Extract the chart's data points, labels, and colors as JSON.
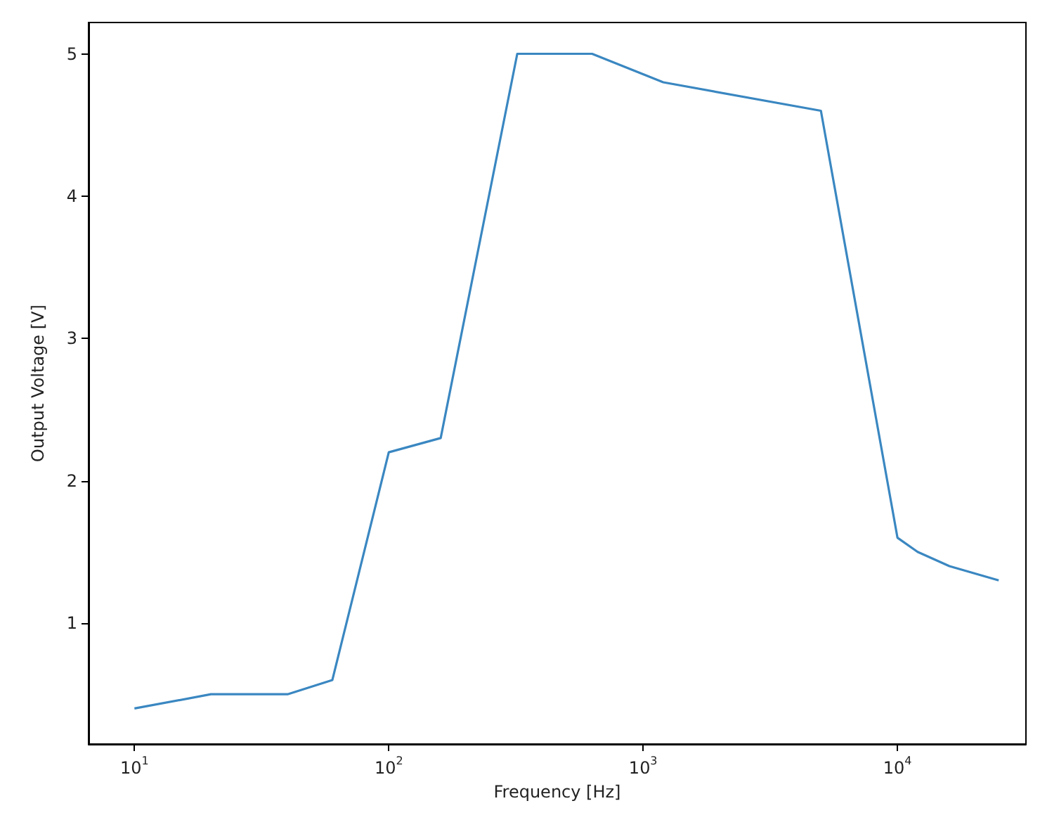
{
  "chart_data": {
    "type": "line",
    "xlabel": "Frequency [Hz]",
    "ylabel": "Output Voltage [V]",
    "log": "x",
    "grid": false,
    "marker": "none",
    "line_style": "solid",
    "xlim": [
      6.6,
      32000
    ],
    "ylim": [
      0.15,
      5.22
    ],
    "xticks": [
      {
        "value": 10,
        "label": "10$^{1}$"
      },
      {
        "value": 100,
        "label": "10$^{2}$"
      },
      {
        "value": 1000,
        "label": "10$^{3}$"
      },
      {
        "value": 10000,
        "label": "10$^{4}$"
      }
    ],
    "yticks": [
      1,
      2,
      3,
      4,
      5
    ],
    "x": [
      10,
      20,
      40,
      60,
      100,
      160,
      320,
      630,
      1200,
      5000,
      10000,
      12000,
      16000,
      25000
    ],
    "series": [
      {
        "color": "#3a87c1",
        "values": [
          0.4,
          0.5,
          0.5,
          0.6,
          2.2,
          2.3,
          5.0,
          5.0,
          4.8,
          4.6,
          1.6,
          1.5,
          1.4,
          1.3
        ]
      }
    ]
  }
}
